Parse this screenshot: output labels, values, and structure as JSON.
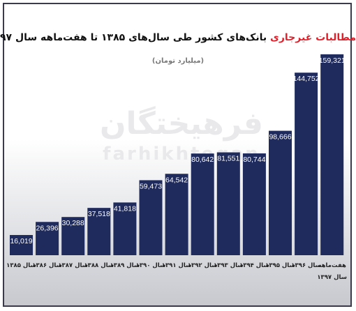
{
  "title": {
    "highlight": "مطالبات غیرجاری",
    "rest": "بانک‌های کشور طی سال‌های ۱۳۸۵ تا هفت‌ماهه سال ۹۷"
  },
  "subtitle": "(میلیارد تومان)",
  "watermark": {
    "persian": "فرهیختگان",
    "latin": "farhikhtegan"
  },
  "colors": {
    "bar": "#1f2b5c",
    "highlight": "#e0212b",
    "value_label": "#ffffff"
  },
  "chart_data": {
    "type": "bar",
    "categories": [
      [
        "سال ۱۳۸۵"
      ],
      [
        "سال ۱۳۸۶"
      ],
      [
        "سال ۱۳۸۷"
      ],
      [
        "سال ۱۳۸۸"
      ],
      [
        "سال ۱۳۸۹"
      ],
      [
        "سال ۱۳۹۰"
      ],
      [
        "سال ۱۳۹۱"
      ],
      [
        "سال ۱۳۹۲"
      ],
      [
        "سال ۱۳۹۳"
      ],
      [
        "سال ۱۳۹۴"
      ],
      [
        "سال ۱۳۹۵"
      ],
      [
        "سال ۱۳۹۶"
      ],
      [
        "هفت‌ماهه",
        "سال ۱۳۹۷"
      ]
    ],
    "values": [
      16019,
      26396,
      30288,
      37518,
      41818,
      59473,
      64542,
      80642,
      81551,
      80744,
      98666,
      144752,
      159321
    ],
    "value_labels": [
      "16,019",
      "26,396",
      "30,288",
      "37,518",
      "41,818",
      "59,473",
      "64,542",
      "80,642",
      "81,551",
      "80,744",
      "98,666",
      "144,752",
      "159,321"
    ],
    "ylim": [
      0,
      162000
    ],
    "grid": false,
    "legend": "none"
  }
}
